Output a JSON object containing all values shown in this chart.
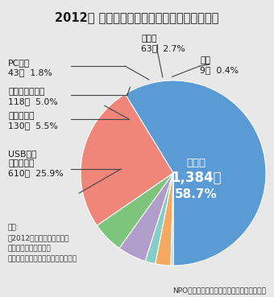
{
  "title": "2012年 情報漏えい媒体・経路別の漏えい件数",
  "slices": [
    {
      "label": "紙媒体",
      "count": "1,384件",
      "pct": "58.7%",
      "value": 58.7,
      "color": "#5b9bd5"
    },
    {
      "label": "USB等可\n搬記録媒体",
      "count": "610件",
      "pct": "25.9%",
      "value": 25.9,
      "color": "#f0857a"
    },
    {
      "label": "電子メール",
      "count": "130件",
      "pct": "5.5%",
      "value": 5.5,
      "color": "#7dc47d"
    },
    {
      "label": "インターネット",
      "count": "118件",
      "pct": "5.0%",
      "value": 5.0,
      "color": "#b09dc9"
    },
    {
      "label": "PC本体",
      "count": "43件",
      "pct": "1.8%",
      "value": 1.8,
      "color": "#85cec8"
    },
    {
      "label": "その他",
      "count": "63件",
      "pct": "2.7%",
      "value": 2.7,
      "color": "#f5a860"
    },
    {
      "label": "不明",
      "count": "9件",
      "pct": "0.4%",
      "value": 0.4,
      "color": "#a8d8d8"
    }
  ],
  "source_text": "出典:\n「2012年情報セキュリティ\nインシデントに関する\n調査報告書～個人情報漏えい編～」",
  "npo_text": "NPO日本ネットワークセキュリティ協会調べ",
  "bg_color": "#e8e8e8",
  "title_fontsize": 10.5,
  "label_fontsize": 7.8
}
